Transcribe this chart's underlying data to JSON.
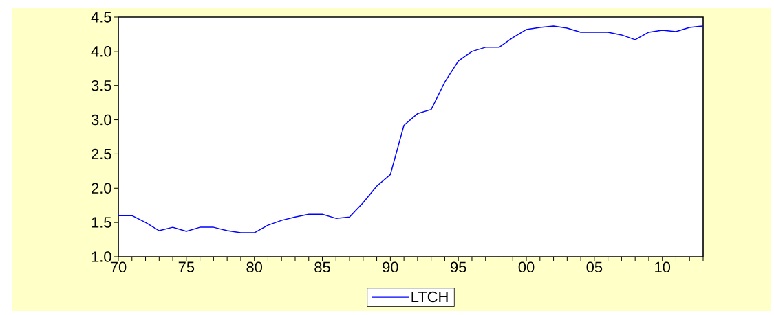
{
  "chart_data": {
    "type": "line",
    "x": [
      1970,
      1971,
      1972,
      1973,
      1974,
      1975,
      1976,
      1977,
      1978,
      1979,
      1980,
      1981,
      1982,
      1983,
      1984,
      1985,
      1986,
      1987,
      1988,
      1989,
      1990,
      1991,
      1992,
      1993,
      1994,
      1995,
      1996,
      1997,
      1998,
      1999,
      2000,
      2001,
      2002,
      2003,
      2004,
      2005,
      2006,
      2007,
      2008,
      2009,
      2010,
      2011,
      2012,
      2013
    ],
    "series": [
      {
        "name": "LTCH",
        "color": "#0000ff",
        "values": [
          1.6,
          1.6,
          1.5,
          1.38,
          1.43,
          1.37,
          1.43,
          1.43,
          1.38,
          1.35,
          1.35,
          1.46,
          1.53,
          1.58,
          1.62,
          1.62,
          1.56,
          1.58,
          1.79,
          2.03,
          2.2,
          2.92,
          3.09,
          3.15,
          3.55,
          3.86,
          4.0,
          4.06,
          4.06,
          4.2,
          4.32,
          4.35,
          4.37,
          4.34,
          4.28,
          4.28,
          4.28,
          4.24,
          4.17,
          4.28,
          4.31,
          4.29,
          4.35,
          4.37
        ]
      }
    ],
    "xlim": [
      1970,
      2013
    ],
    "xticks": [
      {
        "value": 1970,
        "label": "70"
      },
      {
        "value": 1971,
        "label": null
      },
      {
        "value": 1972,
        "label": null
      },
      {
        "value": 1973,
        "label": null
      },
      {
        "value": 1974,
        "label": null
      },
      {
        "value": 1975,
        "label": "75"
      },
      {
        "value": 1976,
        "label": null
      },
      {
        "value": 1977,
        "label": null
      },
      {
        "value": 1978,
        "label": null
      },
      {
        "value": 1979,
        "label": null
      },
      {
        "value": 1980,
        "label": "80"
      },
      {
        "value": 1981,
        "label": null
      },
      {
        "value": 1982,
        "label": null
      },
      {
        "value": 1983,
        "label": null
      },
      {
        "value": 1984,
        "label": null
      },
      {
        "value": 1985,
        "label": "85"
      },
      {
        "value": 1986,
        "label": null
      },
      {
        "value": 1987,
        "label": null
      },
      {
        "value": 1988,
        "label": null
      },
      {
        "value": 1989,
        "label": null
      },
      {
        "value": 1990,
        "label": "90"
      },
      {
        "value": 1991,
        "label": null
      },
      {
        "value": 1992,
        "label": null
      },
      {
        "value": 1993,
        "label": null
      },
      {
        "value": 1994,
        "label": null
      },
      {
        "value": 1995,
        "label": "95"
      },
      {
        "value": 1996,
        "label": null
      },
      {
        "value": 1997,
        "label": null
      },
      {
        "value": 1998,
        "label": null
      },
      {
        "value": 1999,
        "label": null
      },
      {
        "value": 2000,
        "label": "00"
      },
      {
        "value": 2001,
        "label": null
      },
      {
        "value": 2002,
        "label": null
      },
      {
        "value": 2003,
        "label": null
      },
      {
        "value": 2004,
        "label": null
      },
      {
        "value": 2005,
        "label": "05"
      },
      {
        "value": 2006,
        "label": null
      },
      {
        "value": 2007,
        "label": null
      },
      {
        "value": 2008,
        "label": null
      },
      {
        "value": 2009,
        "label": null
      },
      {
        "value": 2010,
        "label": "10"
      },
      {
        "value": 2011,
        "label": null
      },
      {
        "value": 2012,
        "label": null
      },
      {
        "value": 2013,
        "label": null
      }
    ],
    "ylim": [
      1.0,
      4.5
    ],
    "yticks": [
      {
        "value": 1.0,
        "label": "1.0"
      },
      {
        "value": 1.5,
        "label": "1.5"
      },
      {
        "value": 2.0,
        "label": "2.0"
      },
      {
        "value": 2.5,
        "label": "2.5"
      },
      {
        "value": 3.0,
        "label": "3.0"
      },
      {
        "value": 3.5,
        "label": "3.5"
      },
      {
        "value": 4.0,
        "label": "4.0"
      },
      {
        "value": 4.5,
        "label": "4.5"
      }
    ],
    "legend": "bottom",
    "grid": false,
    "marker": "none",
    "line_style": "solid"
  }
}
